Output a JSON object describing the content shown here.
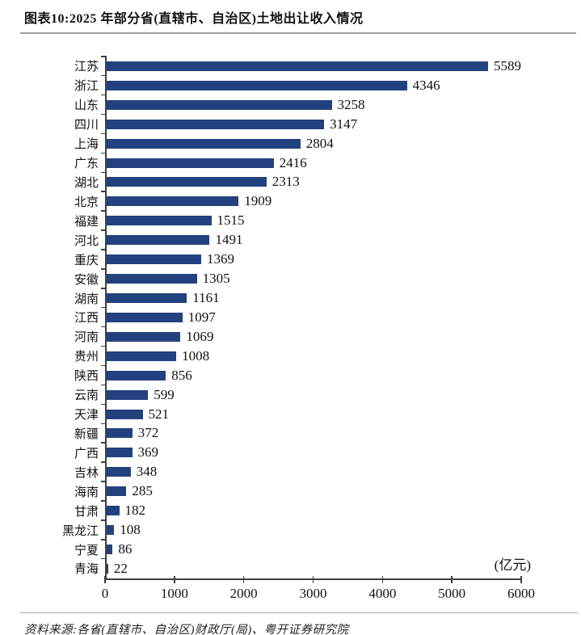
{
  "header": {
    "title": "图表10:2025 年部分省(直辖市、自治区)土地出让收入情况"
  },
  "chart_data": {
    "type": "bar",
    "orientation": "horizontal",
    "title": "2025 年部分省(直辖市、自治区)土地出让收入情况",
    "categories": [
      "江苏",
      "浙江",
      "山东",
      "四川",
      "上海",
      "广东",
      "湖北",
      "北京",
      "福建",
      "河北",
      "重庆",
      "安徽",
      "湖南",
      "江西",
      "河南",
      "贵州",
      "陕西",
      "云南",
      "天津",
      "新疆",
      "广西",
      "吉林",
      "海南",
      "甘肃",
      "黑龙江",
      "宁夏",
      "青海"
    ],
    "values": [
      5589,
      4346,
      3258,
      3147,
      2804,
      2416,
      2313,
      1909,
      1515,
      1491,
      1369,
      1305,
      1161,
      1097,
      1069,
      1008,
      856,
      599,
      521,
      372,
      369,
      348,
      285,
      182,
      108,
      86,
      22
    ],
    "unit_label": "(亿元)",
    "xlabel": "",
    "ylabel": "",
    "xlim": [
      0,
      6000
    ],
    "x_ticks": [
      0,
      1000,
      2000,
      3000,
      4000,
      5000,
      6000
    ],
    "grid": false,
    "legend": false,
    "bar_color": "#24417f",
    "data_labels": true
  },
  "footer": {
    "source": "资料来源:各省(直辖市、自治区)财政厅(局)、粤开证券研究院"
  }
}
